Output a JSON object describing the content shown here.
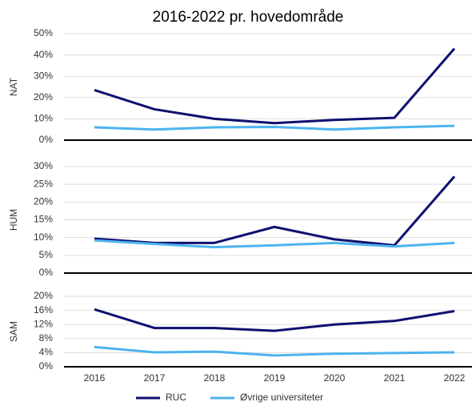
{
  "chart_data": {
    "type": "line",
    "title": "2016-2022 pr. hovedområde",
    "categories": [
      "2016",
      "2017",
      "2018",
      "2019",
      "2020",
      "2021",
      "2022"
    ],
    "legend": [
      {
        "name": "RUC",
        "color": "#0f1070"
      },
      {
        "name": "Øvrige universiteter",
        "color": "#4db3ef"
      }
    ],
    "grid": true,
    "panels": [
      {
        "ylabel": "NAT",
        "ylim": [
          0,
          50
        ],
        "yticks": [
          {
            "value": 0,
            "label": "0%"
          },
          {
            "value": 10,
            "label": "10%"
          },
          {
            "value": 20,
            "label": "20%"
          },
          {
            "value": 30,
            "label": "30%"
          },
          {
            "value": 40,
            "label": "40%"
          },
          {
            "value": 50,
            "label": "50%"
          }
        ],
        "series": [
          {
            "values": [
              23.5,
              14.5,
              10,
              8,
              9.5,
              10.5,
              43
            ]
          },
          {
            "values": [
              6,
              5,
              6,
              6.2,
              5,
              6,
              6.7
            ]
          }
        ]
      },
      {
        "ylabel": "HUM",
        "ylim": [
          0,
          30
        ],
        "yticks": [
          {
            "value": 0,
            "label": "0%"
          },
          {
            "value": 5,
            "label": "5%"
          },
          {
            "value": 10,
            "label": "10%"
          },
          {
            "value": 15,
            "label": "15%"
          },
          {
            "value": 20,
            "label": "20%"
          },
          {
            "value": 25,
            "label": "25%"
          },
          {
            "value": 30,
            "label": "30%"
          }
        ],
        "series": [
          {
            "values": [
              9.7,
              8.5,
              8.5,
              13,
              9.5,
              7.8,
              27.2
            ]
          },
          {
            "values": [
              9.2,
              8.2,
              7.3,
              7.8,
              8.5,
              7.5,
              8.5
            ]
          }
        ]
      },
      {
        "ylabel": "SAM",
        "ylim": [
          0,
          20
        ],
        "yticks": [
          {
            "value": 0,
            "label": "0%"
          },
          {
            "value": 4,
            "label": "4%"
          },
          {
            "value": 8,
            "label": "8%"
          },
          {
            "value": 12,
            "label": "12%"
          },
          {
            "value": 16,
            "label": "16%"
          },
          {
            "value": 20,
            "label": "20%"
          }
        ],
        "series": [
          {
            "values": [
              16.3,
              11,
              11,
              10.2,
              12,
              13,
              15.8
            ]
          },
          {
            "values": [
              5.6,
              4.1,
              4.3,
              3.2,
              3.7,
              3.9,
              4.1
            ]
          }
        ]
      }
    ]
  }
}
